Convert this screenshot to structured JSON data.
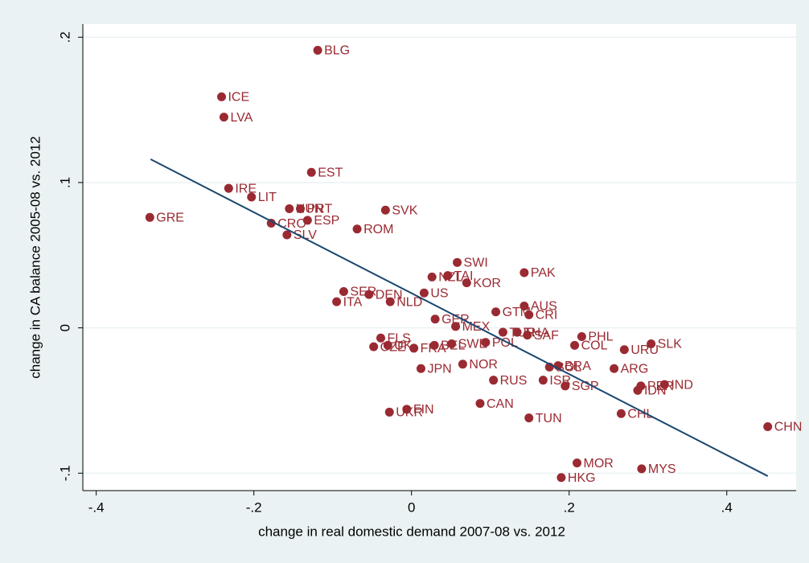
{
  "chart_data": {
    "type": "scatter",
    "x_label": "change in real domestic demand 2007-08 vs. 2012",
    "y_label": "change in CA balance 2005-08 vs. 2012",
    "xlim": [
      -0.417,
      0.488
    ],
    "ylim": [
      -0.112,
      0.209
    ],
    "xticks": [
      {
        "value": -0.4,
        "label": "-.4"
      },
      {
        "value": -0.2,
        "label": "-.2"
      },
      0,
      {
        "value": 0.2,
        "label": ".2"
      },
      {
        "value": 0.4,
        "label": ".4"
      }
    ],
    "yticks": [
      {
        "value": -0.1,
        "label": "-.1"
      },
      0,
      {
        "value": 0.1,
        "label": ".1"
      },
      {
        "value": 0.2,
        "label": ".2"
      }
    ],
    "grid": true,
    "series": [
      {
        "color": "#9a2a32",
        "labels": [
          "BLG",
          "ICE",
          "LVA",
          "EST",
          "IRE",
          "LIT",
          "HUN",
          "PRT",
          "ESP",
          "CRO",
          "SLV",
          "ROM",
          "SVK",
          "GRE",
          "SWI",
          "NZL",
          "TAI",
          "KOR",
          "PAK",
          "SER",
          "DEN",
          "US",
          "ITA",
          "NLD",
          "GTM",
          "AUS",
          "CRI",
          "GER",
          "MEX",
          "TUR",
          "THA",
          "SAF",
          "PHL",
          "SLK",
          "URU",
          "COL",
          "FLS",
          "CZE",
          "UK",
          "FRA",
          "BEL",
          "SWE",
          "POL",
          "ARG",
          "NOR",
          "JPN",
          "BOL",
          "BRA",
          "RUS",
          "ISR",
          "SGP",
          "PER",
          "IDN",
          "IND",
          "CAN",
          "TUN",
          "CHL",
          "FIN",
          "UKR",
          "CHN",
          "MOR",
          "MYS",
          "HKG"
        ],
        "x": [
          -0.119,
          -0.241,
          -0.238,
          -0.127,
          -0.232,
          -0.203,
          -0.155,
          -0.141,
          -0.132,
          -0.178,
          -0.158,
          -0.069,
          -0.033,
          -0.332,
          0.058,
          0.026,
          0.046,
          0.07,
          0.143,
          -0.086,
          -0.054,
          0.016,
          -0.095,
          -0.027,
          0.107,
          0.143,
          0.149,
          0.03,
          0.056,
          0.116,
          0.134,
          0.147,
          0.216,
          0.304,
          0.27,
          0.207,
          -0.039,
          -0.048,
          -0.03,
          0.003,
          0.029,
          0.051,
          0.094,
          0.257,
          0.065,
          0.012,
          0.175,
          0.186,
          0.104,
          0.167,
          0.195,
          0.291,
          0.287,
          0.321,
          0.087,
          0.149,
          0.266,
          -0.006,
          -0.028,
          0.452,
          0.21,
          0.292,
          0.19
        ],
        "values": [
          0.191,
          0.159,
          0.145,
          0.107,
          0.096,
          0.09,
          0.082,
          0.082,
          0.074,
          0.072,
          0.064,
          0.068,
          0.081,
          0.076,
          0.045,
          0.035,
          0.036,
          0.031,
          0.038,
          0.025,
          0.023,
          0.024,
          0.018,
          0.018,
          0.011,
          0.015,
          0.009,
          0.006,
          0.001,
          -0.003,
          -0.003,
          -0.005,
          -0.006,
          -0.011,
          -0.015,
          -0.012,
          -0.007,
          -0.013,
          -0.012,
          -0.014,
          -0.012,
          -0.011,
          -0.01,
          -0.028,
          -0.025,
          -0.028,
          -0.027,
          -0.026,
          -0.036,
          -0.036,
          -0.04,
          -0.04,
          -0.043,
          -0.039,
          -0.052,
          -0.062,
          -0.059,
          -0.056,
          -0.058,
          -0.068,
          -0.093,
          -0.097,
          -0.103
        ]
      }
    ],
    "fit": {
      "color": "#1a476f",
      "x": [
        -0.331,
        0.452
      ],
      "values": [
        0.116,
        -0.102
      ]
    }
  }
}
